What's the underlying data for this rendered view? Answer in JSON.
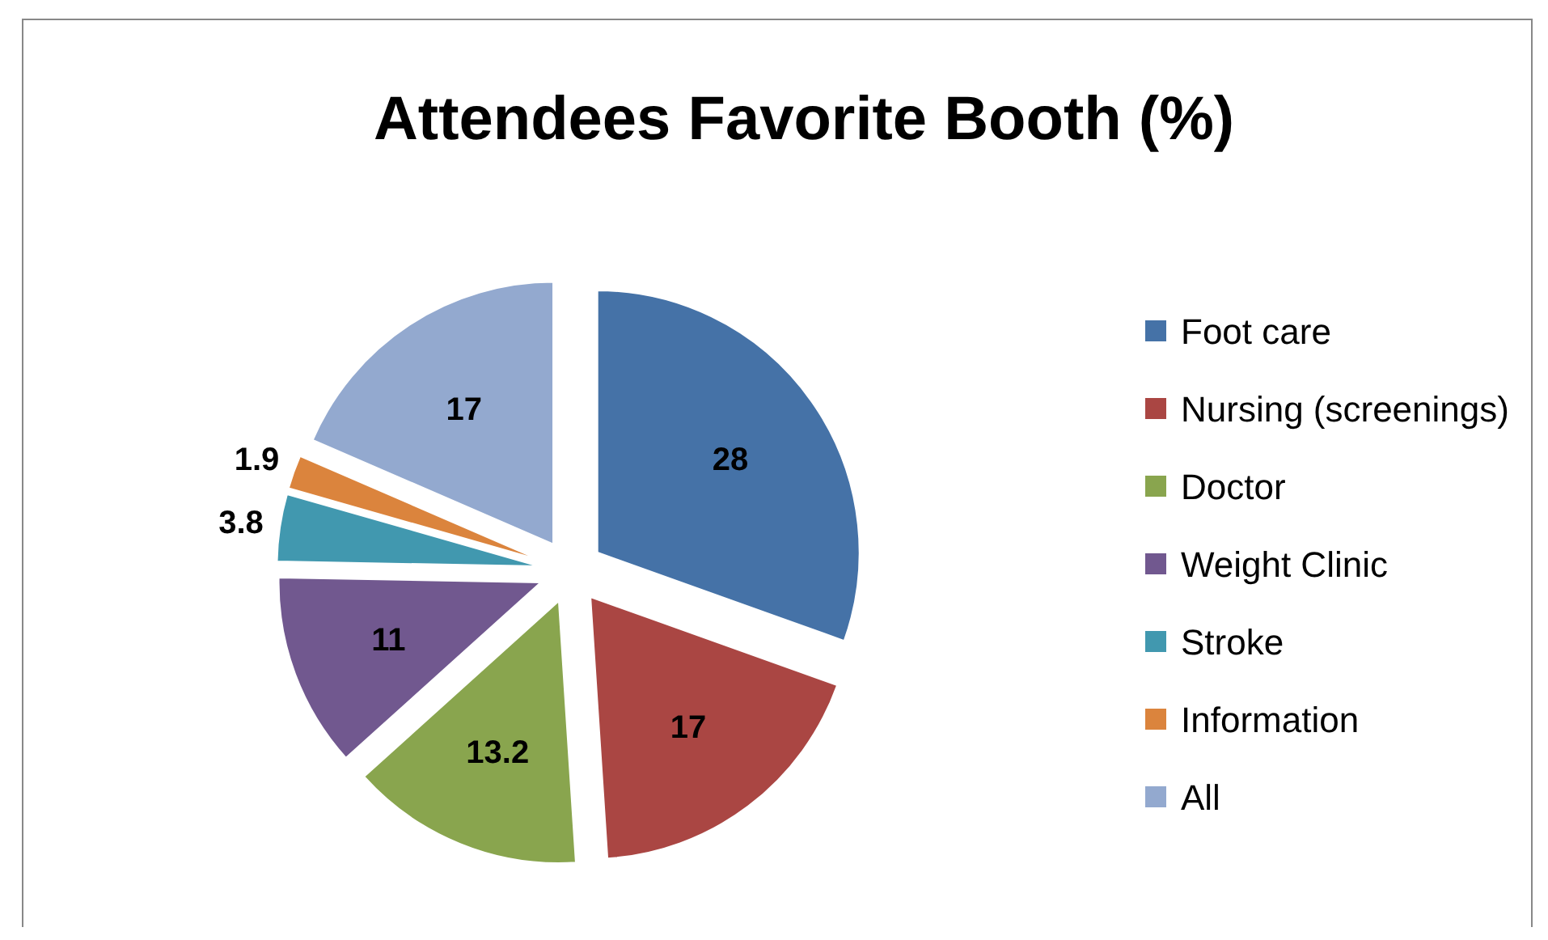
{
  "chart_data": {
    "type": "pie",
    "title": "Attendees Favorite Booth (%)",
    "categories": [
      "Foot care",
      "Nursing (screenings)",
      "Doctor",
      "Weight Clinic",
      "Stroke",
      "Information",
      "All"
    ],
    "values": [
      28,
      17,
      13.2,
      11,
      3.8,
      1.9,
      17
    ],
    "colors": [
      "#4572a7",
      "#aa4643",
      "#89a54e",
      "#71588f",
      "#4198af",
      "#db843d",
      "#93a9cf"
    ],
    "data_labels": true,
    "legend": "right"
  }
}
